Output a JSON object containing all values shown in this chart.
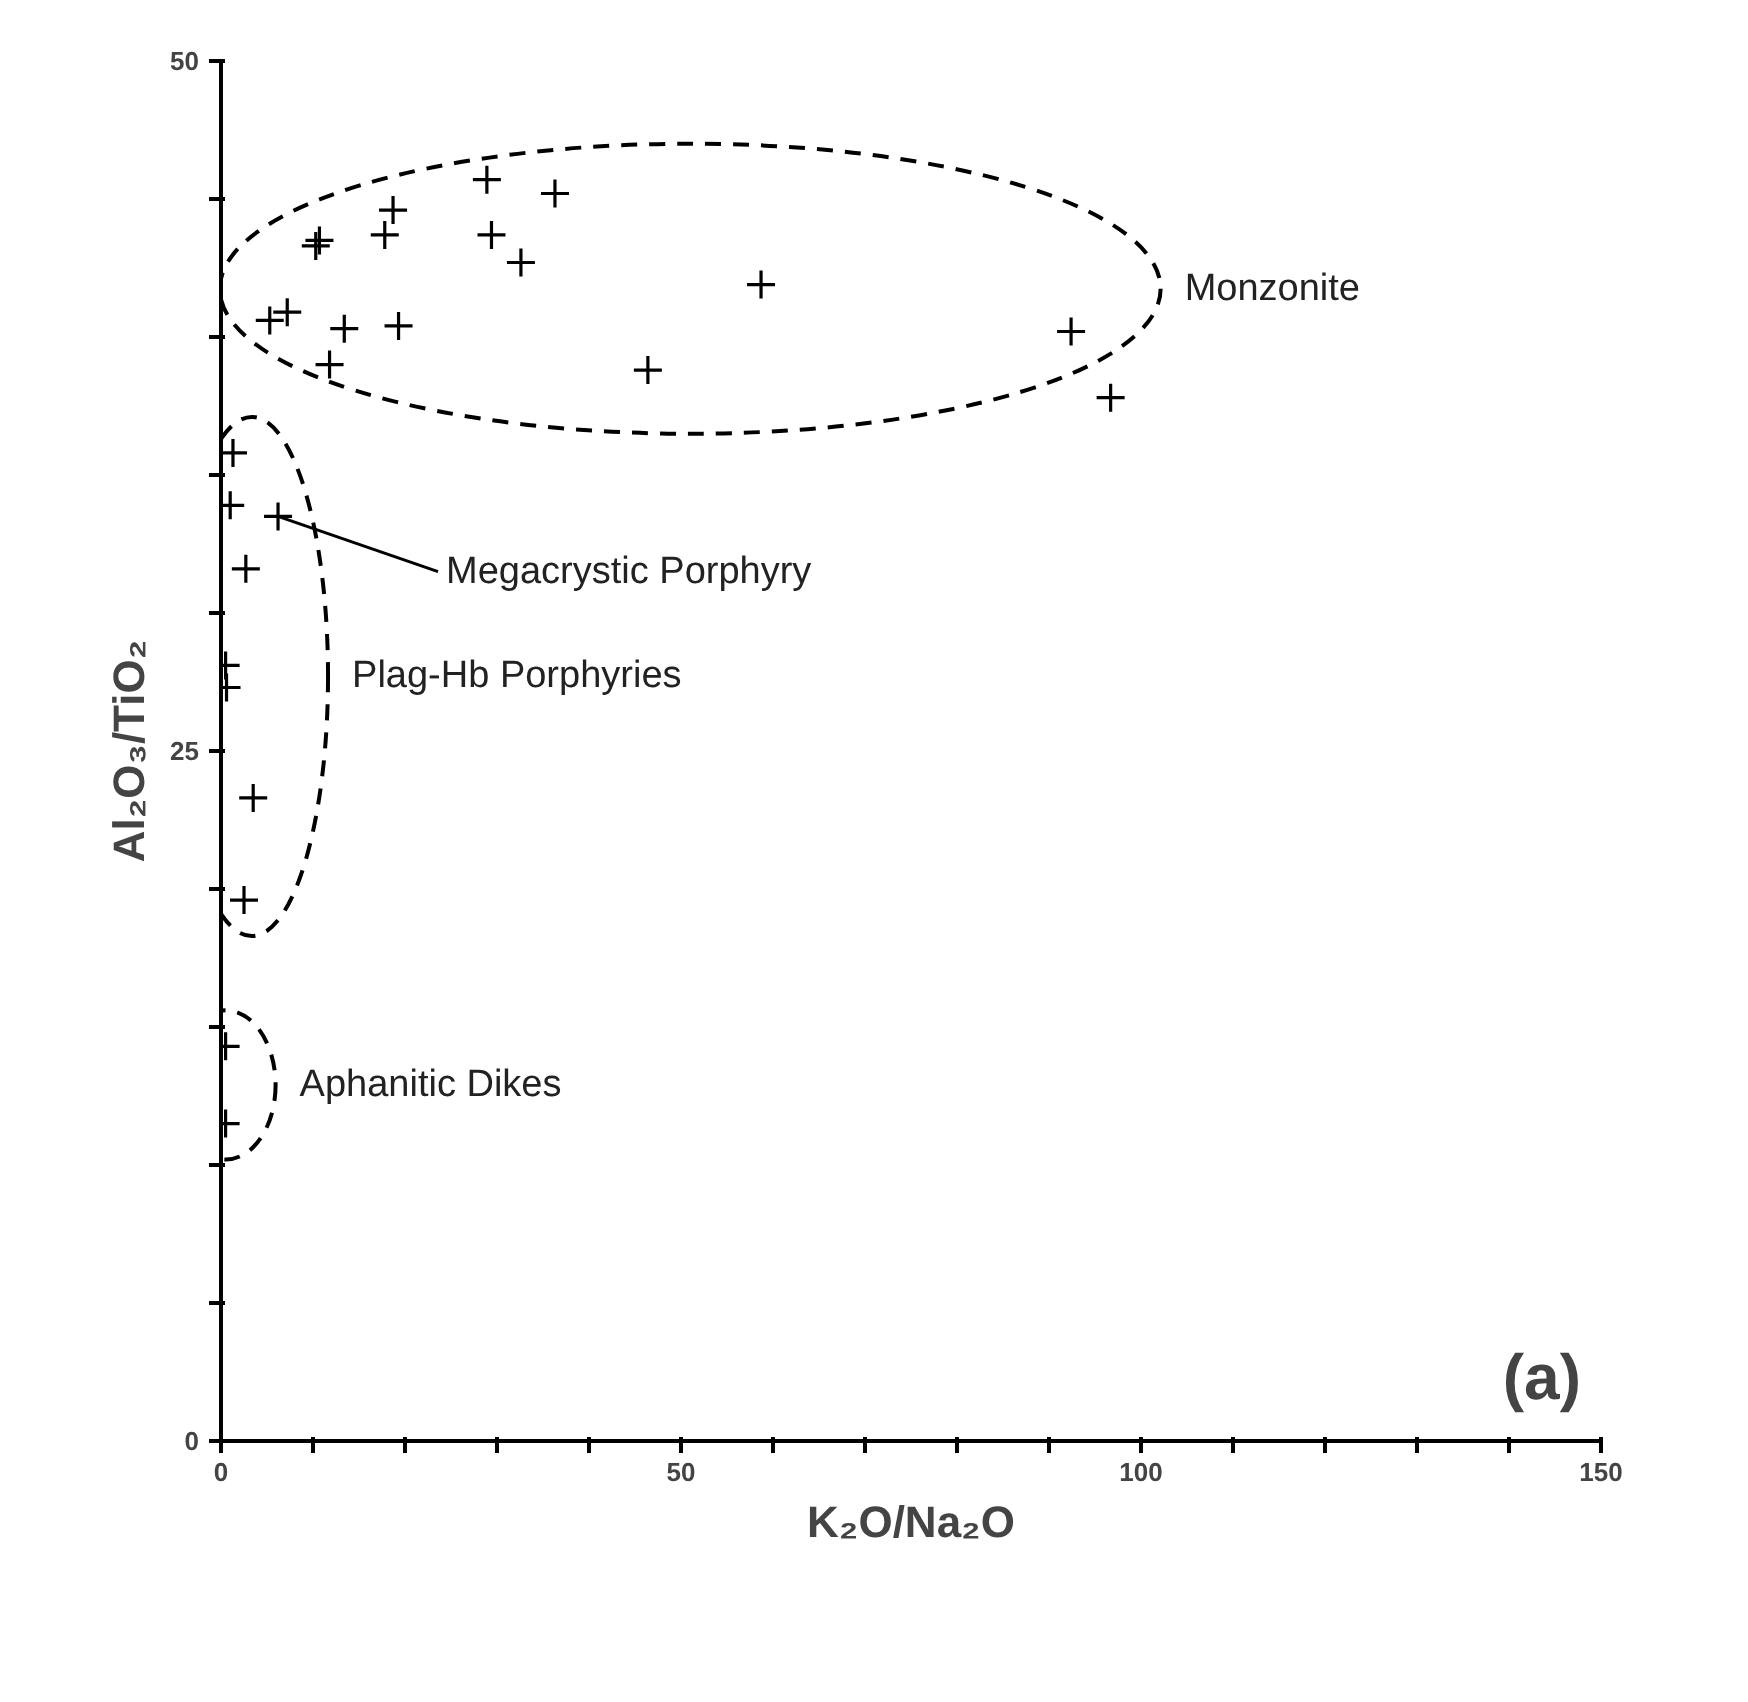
{
  "chart_data": {
    "type": "scatter",
    "xlabel": "K₂O/Na₂O",
    "ylabel": "Al₂O₃/TiO₂",
    "xlim": [
      0,
      150
    ],
    "ylim": [
      0,
      50
    ],
    "xticks": [
      0,
      {
        "value": 10,
        "label": null
      },
      {
        "value": 20,
        "label": null
      },
      {
        "value": 30,
        "label": null
      },
      {
        "value": 40,
        "label": null
      },
      50,
      {
        "value": 60,
        "label": null
      },
      {
        "value": 70,
        "label": null
      },
      {
        "value": 80,
        "label": null
      },
      {
        "value": 90,
        "label": null
      },
      100,
      {
        "value": 110,
        "label": null
      },
      {
        "value": 120,
        "label": null
      },
      {
        "value": 130,
        "label": null
      },
      {
        "value": 140,
        "label": null
      },
      150
    ],
    "yticks": [
      0,
      {
        "value": 5,
        "label": null
      },
      {
        "value": 10,
        "label": null
      },
      {
        "value": 15,
        "label": null
      },
      {
        "value": 20,
        "label": null
      },
      25,
      {
        "value": 30,
        "label": null
      },
      {
        "value": 35,
        "label": null
      },
      {
        "value": 40,
        "label": null
      },
      {
        "value": 45,
        "label": null
      },
      50
    ],
    "marker": "cross",
    "grid": false,
    "series": [
      {
        "name": "Monzonite",
        "color": "#000000",
        "x": [
          28.9,
          36.3,
          18.7,
          17.8,
          10.7,
          10.3,
          29.4,
          32.6,
          58.7,
          5.3,
          7.2,
          13.4,
          19.3,
          11.8,
          46.4,
          92.4,
          96.7
        ],
        "values": [
          45.7,
          45.2,
          44.6,
          43.7,
          43.5,
          43.3,
          43.7,
          42.7,
          41.9,
          40.6,
          40.9,
          40.3,
          40.4,
          39.0,
          38.8,
          40.2,
          37.8
        ]
      },
      {
        "name": "Plag-Hb Porphyries",
        "color": "#000000",
        "x": [
          1.3,
          1.0,
          6.2,
          2.7,
          0.5,
          0.6,
          3.5,
          2.5
        ],
        "values": [
          35.8,
          33.9,
          33.5,
          31.6,
          28.1,
          27.3,
          23.3,
          19.6
        ]
      },
      {
        "name": "Aphanitic Dikes",
        "color": "#000000",
        "x": [
          0.5,
          0.5
        ],
        "values": [
          14.3,
          11.5
        ]
      }
    ],
    "annotations": [
      {
        "text": "Megacrystic Porphyry",
        "x": 6.2,
        "y": 33.5
      },
      "(a)"
    ]
  }
}
